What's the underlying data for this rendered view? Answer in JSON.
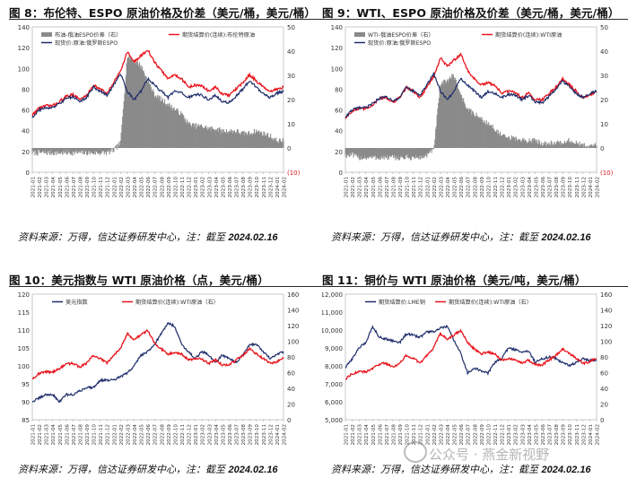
{
  "panels": [
    {
      "title": "图 8：布伦特、ESPO 原油价格及价差（美元/桶，美元/桶）",
      "source_prefix": "资料来源：万得，信达证券研发中心，注：截至",
      "source_date": "2024.02.16"
    },
    {
      "title": "图 9：WTI、ESPO 原油价格及价差（美元/桶，美元/桶）",
      "source_prefix": "资料来源：万得，信达证券研发中心，注：截至",
      "source_date": "2024.02.16"
    },
    {
      "title": "图 10：美元指数与 WTI 原油价格（点，美元/桶）",
      "source_prefix": "资料来源：万得，信达证券研发中心，注：截至",
      "source_date": "2024.02.16"
    },
    {
      "title": "图 11：铜价与 WTI 原油价格（美元/吨，美元/桶）",
      "source_prefix": "资料来源：万得，信达证券研发中心，注：截至",
      "source_date": "2024.02.16"
    }
  ],
  "watermark": "公众号 · 燕金新视野",
  "colors": {
    "navy": "#1f2d6b",
    "red": "#e8141c",
    "spread": "#8a8a8a",
    "grid": "#d0d0d0"
  },
  "chart_data": [
    {
      "type": "line",
      "x_ticks": [
        "2021-01",
        "2021-02",
        "2021-03",
        "2021-04",
        "2021-05",
        "2021-06",
        "2021-07",
        "2021-08",
        "2021-09",
        "2021-10",
        "2021-11",
        "2021-12",
        "2022-01",
        "2022-02",
        "2022-03",
        "2022-04",
        "2022-05",
        "2022-06",
        "2022-07",
        "2022-08",
        "2022-09",
        "2022-10",
        "2022-11",
        "2022-12",
        "2023-01",
        "2023-02",
        "2023-03",
        "2023-04",
        "2023-05",
        "2023-06",
        "2023-07",
        "2023-08",
        "2023-09",
        "2023-10",
        "2023-11",
        "2023-12",
        "2024-01",
        "2024-02"
      ],
      "y_left_ticks": [
        "0",
        "20",
        "40",
        "60",
        "80",
        "100",
        "120",
        "140"
      ],
      "y_right_ticks": [
        "(10)",
        "0",
        "10",
        "20",
        "30",
        "40",
        "50"
      ],
      "ylim_left": [
        0,
        140
      ],
      "ylim_right": [
        -10,
        50
      ],
      "series": [
        {
          "name": "布油-俄油ESPO价差（右）",
          "kind": "area",
          "axis": "right",
          "color": "#8a8a8a",
          "values": [
            -2,
            -2,
            -2,
            -2,
            -2,
            -2,
            -2,
            -2,
            -2,
            -2,
            -2,
            -2,
            -1,
            2,
            38,
            36,
            34,
            28,
            22,
            20,
            18,
            16,
            14,
            10,
            9,
            9,
            8,
            8,
            7,
            7,
            7,
            6,
            6,
            7,
            6,
            5,
            3,
            3
          ]
        },
        {
          "name": "期货结算价(连续):布伦特原油",
          "axis": "left",
          "color": "#e8141c",
          "values": [
            55,
            62,
            64,
            64,
            68,
            73,
            75,
            70,
            74,
            84,
            80,
            76,
            86,
            98,
            116,
            106,
            112,
            118,
            106,
            98,
            90,
            94,
            90,
            82,
            84,
            83,
            78,
            82,
            75,
            74,
            80,
            86,
            94,
            88,
            82,
            77,
            80,
            82
          ]
        },
        {
          "name": "现货价:原油:俄罗斯ESPO",
          "axis": "left",
          "color": "#1f2d6b",
          "values": [
            53,
            60,
            62,
            62,
            66,
            71,
            73,
            68,
            72,
            82,
            78,
            74,
            84,
            95,
            78,
            70,
            78,
            90,
            84,
            78,
            72,
            78,
            76,
            72,
            75,
            74,
            70,
            74,
            68,
            67,
            73,
            80,
            88,
            82,
            76,
            72,
            76,
            78
          ]
        }
      ]
    },
    {
      "type": "line",
      "x_ticks": [
        "2021-01",
        "2021-02",
        "2021-03",
        "2021-04",
        "2021-05",
        "2021-06",
        "2021-07",
        "2021-08",
        "2021-09",
        "2021-10",
        "2021-11",
        "2021-12",
        "2022-01",
        "2022-02",
        "2022-03",
        "2022-04",
        "2022-05",
        "2022-06",
        "2022-07",
        "2022-08",
        "2022-09",
        "2022-10",
        "2022-11",
        "2022-12",
        "2023-01",
        "2023-02",
        "2023-03",
        "2023-04",
        "2023-05",
        "2023-06",
        "2023-07",
        "2023-08",
        "2023-09",
        "2023-10",
        "2023-11",
        "2023-12",
        "2024-01",
        "2024-02"
      ],
      "y_left_ticks": [
        "0",
        "20",
        "40",
        "60",
        "80",
        "100",
        "120",
        "140"
      ],
      "y_right_ticks": [
        "(10)",
        "0",
        "10",
        "20",
        "30",
        "40",
        "50"
      ],
      "ylim_left": [
        0,
        140
      ],
      "ylim_right": [
        -10,
        50
      ],
      "series": [
        {
          "name": "WTI-俄油ESPO价差（右）",
          "kind": "area",
          "axis": "right",
          "color": "#8a8a8a",
          "values": [
            -3,
            -3,
            -4,
            -4,
            -4,
            -4,
            -4,
            -4,
            -4,
            -4,
            -4,
            -4,
            -3,
            -1,
            26,
            28,
            30,
            22,
            16,
            14,
            12,
            10,
            8,
            5,
            4,
            4,
            3,
            3,
            3,
            2,
            2,
            2,
            2,
            3,
            2,
            1,
            1,
            1
          ]
        },
        {
          "name": "期货结算价(连续):WTI原油",
          "axis": "left",
          "color": "#e8141c",
          "values": [
            52,
            59,
            61,
            61,
            65,
            71,
            72,
            67,
            72,
            82,
            78,
            72,
            82,
            92,
            110,
            102,
            108,
            114,
            98,
            90,
            84,
            86,
            84,
            76,
            78,
            77,
            72,
            76,
            70,
            70,
            76,
            82,
            90,
            84,
            78,
            72,
            74,
            78
          ]
        },
        {
          "name": "现货价:原油:俄罗斯ESPO",
          "axis": "left",
          "color": "#1f2d6b",
          "values": [
            53,
            60,
            62,
            62,
            66,
            71,
            73,
            68,
            72,
            82,
            78,
            74,
            84,
            95,
            78,
            70,
            78,
            90,
            84,
            78,
            72,
            78,
            76,
            72,
            75,
            74,
            70,
            74,
            68,
            67,
            73,
            80,
            88,
            82,
            76,
            72,
            76,
            78
          ]
        }
      ]
    },
    {
      "type": "line",
      "x_ticks": [
        "2021-01",
        "2021-02",
        "2021-03",
        "2021-04",
        "2021-05",
        "2021-06",
        "2021-07",
        "2021-08",
        "2021-09",
        "2021-10",
        "2021-11",
        "2021-12",
        "2022-01",
        "2022-02",
        "2022-03",
        "2022-04",
        "2022-05",
        "2022-06",
        "2022-07",
        "2022-08",
        "2022-09",
        "2022-10",
        "2022-11",
        "2022-12",
        "2023-01",
        "2023-02",
        "2023-03",
        "2023-04",
        "2023-05",
        "2023-06",
        "2023-07",
        "2023-08",
        "2023-09",
        "2023-10",
        "2023-11",
        "2023-12",
        "2024-01",
        "2024-02"
      ],
      "y_left_ticks": [
        "85",
        "90",
        "95",
        "100",
        "105",
        "110",
        "115",
        "120"
      ],
      "y_right_ticks": [
        "0",
        "20",
        "40",
        "60",
        "80",
        "100",
        "120",
        "140",
        "160"
      ],
      "ylim_left": [
        85,
        120
      ],
      "ylim_right": [
        0,
        160
      ],
      "series": [
        {
          "name": "美元指数",
          "axis": "left",
          "color": "#1f2d6b",
          "values": [
            90,
            91,
            92,
            92,
            90,
            92,
            92,
            93,
            94,
            94,
            96,
            96,
            96,
            97,
            98,
            100,
            103,
            104,
            106,
            109,
            112,
            111,
            106,
            104,
            102,
            104,
            103,
            101,
            103,
            102,
            101,
            103,
            106,
            106,
            104,
            102,
            103,
            104
          ]
        },
        {
          "name": "期货结算价(连续):WTI原油（右）",
          "axis": "right",
          "color": "#e8141c",
          "values": [
            52,
            59,
            61,
            61,
            65,
            71,
            72,
            67,
            72,
            82,
            78,
            72,
            82,
            92,
            110,
            102,
            108,
            114,
            98,
            90,
            84,
            86,
            84,
            76,
            78,
            77,
            72,
            76,
            70,
            70,
            76,
            82,
            90,
            84,
            78,
            72,
            74,
            78
          ]
        }
      ]
    },
    {
      "type": "line",
      "x_ticks": [
        "2021-01",
        "2021-02",
        "2021-03",
        "2021-04",
        "2021-05",
        "2021-06",
        "2021-07",
        "2021-08",
        "2021-09",
        "2021-10",
        "2021-11",
        "2021-12",
        "2022-01",
        "2022-02",
        "2022-03",
        "2022-04",
        "2022-05",
        "2022-06",
        "2022-07",
        "2022-08",
        "2022-09",
        "2022-10",
        "2022-11",
        "2022-12",
        "2023-01",
        "2023-02",
        "2023-03",
        "2023-04",
        "2023-05",
        "2023-06",
        "2023-07",
        "2023-08",
        "2023-09",
        "2023-10",
        "2023-11",
        "2023-12",
        "2024-01",
        "2024-02"
      ],
      "y_left_ticks": [
        "5,000",
        "6,000",
        "7,000",
        "8,000",
        "9,000",
        "10,000",
        "11,000",
        "12,000"
      ],
      "y_right_ticks": [
        "0",
        "20",
        "40",
        "60",
        "80",
        "100",
        "120",
        "140",
        "160"
      ],
      "ylim_left": [
        5000,
        12000
      ],
      "ylim_right": [
        0,
        160
      ],
      "series": [
        {
          "name": "期货结算价:LME铜",
          "axis": "left",
          "color": "#1f2d6b",
          "values": [
            7900,
            8400,
            9000,
            9300,
            10200,
            9600,
            9500,
            9400,
            9300,
            9800,
            9700,
            9600,
            9900,
            9900,
            10100,
            10200,
            9400,
            8700,
            7600,
            7900,
            7700,
            7600,
            8200,
            8400,
            9000,
            8900,
            8800,
            8800,
            8200,
            8400,
            8500,
            8400,
            8200,
            8000,
            8200,
            8400,
            8300,
            8300
          ]
        },
        {
          "name": "期货结算价(连续):WTI原油（右）",
          "axis": "right",
          "color": "#e8141c",
          "values": [
            52,
            59,
            61,
            61,
            65,
            71,
            72,
            67,
            72,
            82,
            78,
            72,
            82,
            92,
            110,
            102,
            108,
            114,
            98,
            90,
            84,
            86,
            84,
            76,
            78,
            77,
            72,
            76,
            70,
            70,
            76,
            82,
            90,
            84,
            78,
            72,
            74,
            78
          ]
        }
      ]
    }
  ]
}
